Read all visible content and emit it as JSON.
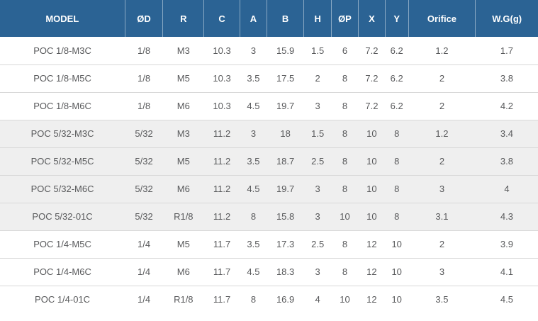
{
  "chart_data": {
    "type": "table",
    "columns": [
      "MODEL",
      "ØD",
      "R",
      "C",
      "A",
      "B",
      "H",
      "ØP",
      "X",
      "Y",
      "Orifice",
      "W.G(g)"
    ],
    "rows": [
      [
        "POC 1/8-M3C",
        "1/8",
        "M3",
        "10.3",
        "3",
        "15.9",
        "1.5",
        "6",
        "7.2",
        "6.2",
        "1.2",
        "1.7"
      ],
      [
        "POC 1/8-M5C",
        "1/8",
        "M5",
        "10.3",
        "3.5",
        "17.5",
        "2",
        "8",
        "7.2",
        "6.2",
        "2",
        "3.8"
      ],
      [
        "POC 1/8-M6C",
        "1/8",
        "M6",
        "10.3",
        "4.5",
        "19.7",
        "3",
        "8",
        "7.2",
        "6.2",
        "2",
        "4.2"
      ],
      [
        "POC 5/32-M3C",
        "5/32",
        "M3",
        "11.2",
        "3",
        "18",
        "1.5",
        "8",
        "10",
        "8",
        "1.2",
        "3.4"
      ],
      [
        "POC 5/32-M5C",
        "5/32",
        "M5",
        "11.2",
        "3.5",
        "18.7",
        "2.5",
        "8",
        "10",
        "8",
        "2",
        "3.8"
      ],
      [
        "POC 5/32-M6C",
        "5/32",
        "M6",
        "11.2",
        "4.5",
        "19.7",
        "3",
        "8",
        "10",
        "8",
        "3",
        "4"
      ],
      [
        "POC 5/32-01C",
        "5/32",
        "R1/8",
        "11.2",
        "8",
        "15.8",
        "3",
        "10",
        "10",
        "8",
        "3.1",
        "4.3"
      ],
      [
        "POC 1/4-M5C",
        "1/4",
        "M5",
        "11.7",
        "3.5",
        "17.3",
        "2.5",
        "8",
        "12",
        "10",
        "2",
        "3.9"
      ],
      [
        "POC 1/4-M6C",
        "1/4",
        "M6",
        "11.7",
        "4.5",
        "18.3",
        "3",
        "8",
        "12",
        "10",
        "3",
        "4.1"
      ],
      [
        "POC 1/4-01C",
        "1/4",
        "R1/8",
        "11.7",
        "8",
        "16.9",
        "4",
        "10",
        "12",
        "10",
        "3.5",
        "4.5"
      ]
    ],
    "shaded_row_indices": [
      3,
      4,
      5,
      6
    ],
    "legend_position": "none",
    "grid": "horizontal-row-borders"
  },
  "colors": {
    "header_bg": "#2b6394",
    "header_text": "#ffffff",
    "header_divider": "#c4d3e1",
    "body_text": "#58595b",
    "row_border": "#d8d8d8",
    "shaded_row_bg": "#efefef",
    "row_bg": "#ffffff"
  }
}
